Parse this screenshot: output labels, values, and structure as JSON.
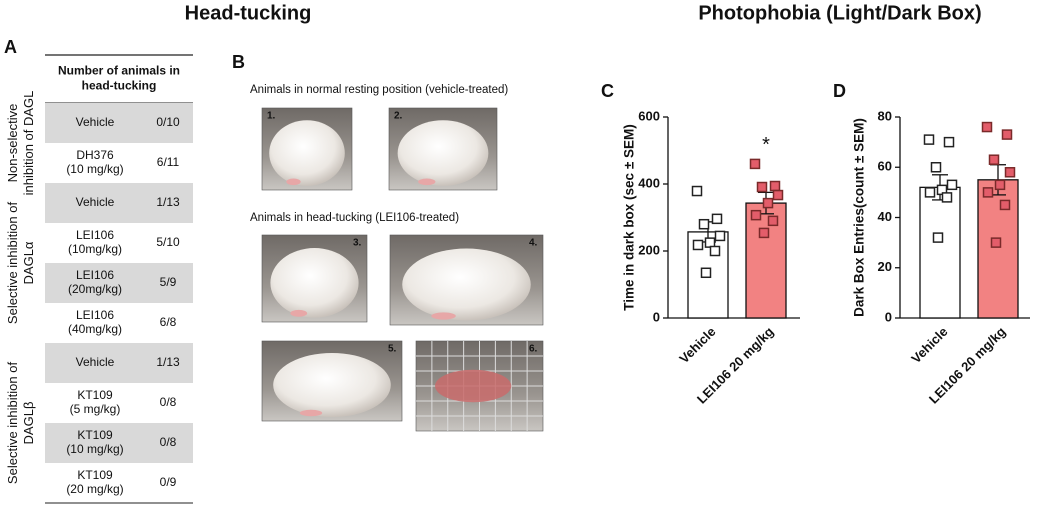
{
  "header": {
    "left_title": "Head-tucking",
    "right_title": "Photophobia (Light/Dark Box)"
  },
  "panel_labels": [
    "A",
    "B",
    "C",
    "D"
  ],
  "table": {
    "header": [
      "Number of animals in",
      "head-tucking"
    ],
    "groups": [
      {
        "label": [
          "Non-selective",
          "inhibition of DAGL"
        ],
        "rows": [
          {
            "treatment": [
              "Vehicle"
            ],
            "count": "0/10"
          },
          {
            "treatment": [
              "DH376",
              "(10 mg/kg)"
            ],
            "count": "6/11"
          }
        ]
      },
      {
        "label": [
          "Selective inhibition of",
          "DAGLα"
        ],
        "rows": [
          {
            "treatment": [
              "Vehicle"
            ],
            "count": "1/13"
          },
          {
            "treatment": [
              "LEI106",
              "(10mg/kg)"
            ],
            "count": "5/10"
          },
          {
            "treatment": [
              "LEI106",
              "(20mg/kg)"
            ],
            "count": "5/9"
          },
          {
            "treatment": [
              "LEI106",
              "(40mg/kg)"
            ],
            "count": "6/8"
          }
        ]
      },
      {
        "label": [
          "Selective inhibition of",
          "DAGLβ"
        ],
        "rows": [
          {
            "treatment": [
              "Vehicle"
            ],
            "count": "1/13"
          },
          {
            "treatment": [
              "KT109",
              "(5 mg/kg)"
            ],
            "count": "0/8"
          },
          {
            "treatment": [
              "KT109",
              "(10 mg/kg)"
            ],
            "count": "0/8"
          },
          {
            "treatment": [
              "KT109",
              "(20 mg/kg)"
            ],
            "count": "0/9"
          }
        ]
      }
    ]
  },
  "photos": {
    "captions": [
      "Animals in normal resting position (vehicle-treated)",
      "Animals in head-tucking (LEI106-treated)"
    ],
    "tiles": [
      "1.",
      "2.",
      "3.",
      "4.",
      "5.",
      "6."
    ]
  },
  "chart_data": [
    {
      "type": "bar",
      "ylabel": "Time in dark box (sec ± SEM)",
      "categories": [
        "Vehicle",
        "LEI106 20 mg/kg"
      ],
      "values": [
        257,
        343
      ],
      "errors": [
        30,
        32
      ],
      "colors": [
        "#ffffff",
        "#f28282"
      ],
      "points": [
        [
          379,
          296,
          280,
          245,
          225,
          218,
          200,
          135
        ],
        [
          460,
          394,
          391,
          367,
          343,
          307,
          290,
          254
        ]
      ],
      "point_colors": [
        "#ffffff",
        "#e35d6a"
      ],
      "annotation": "*",
      "ylim": [
        0,
        600
      ],
      "yticks": [
        0,
        200,
        400,
        600
      ]
    },
    {
      "type": "bar",
      "ylabel": "Dark Box Entries(count ± SEM)",
      "categories": [
        "Vehicle",
        "LEI106 20 mg/kg"
      ],
      "values": [
        52,
        55
      ],
      "errors": [
        5,
        6
      ],
      "colors": [
        "#ffffff",
        "#f28282"
      ],
      "points": [
        [
          71,
          70,
          60,
          53,
          51,
          50,
          48,
          32
        ],
        [
          76,
          73,
          63,
          58,
          53,
          50,
          45,
          30
        ]
      ],
      "point_colors": [
        "#ffffff",
        "#e35d6a"
      ],
      "ylim": [
        0,
        80
      ],
      "yticks": [
        0,
        20,
        40,
        60,
        80
      ]
    }
  ]
}
